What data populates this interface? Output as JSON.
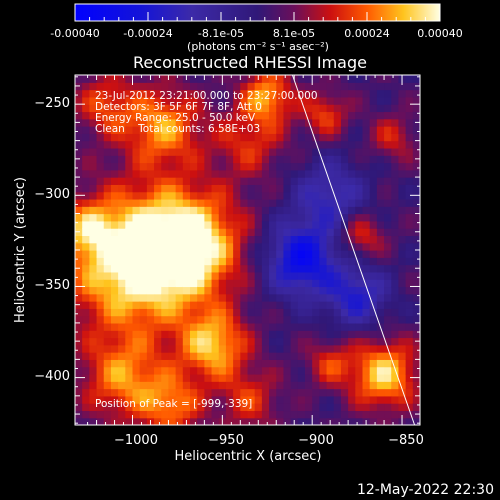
{
  "colorbar": {
    "ticks": [
      "-0.00040",
      "-0.00024",
      "-8.1e-05",
      "8.1e-05",
      "0.00024",
      "0.00040"
    ],
    "units": "(photons cm⁻² s⁻¹ asec⁻²)",
    "range": [
      -0.0004,
      0.0004
    ]
  },
  "chart_data": {
    "type": "heatmap",
    "title": "Reconstructed RHESSI Image",
    "xlabel": "Heliocentric X (arcsec)",
    "ylabel": "Heliocentric Y (arcsec)",
    "xlim": [
      -1032,
      -840
    ],
    "ylim": [
      -426,
      -234
    ],
    "x_ticks": [
      -1000,
      -950,
      -900,
      -850
    ],
    "x_tick_labels": [
      "−1000",
      "−950",
      "−900",
      "−850"
    ],
    "y_ticks": [
      -250,
      -300,
      -350,
      -400
    ],
    "y_tick_labels": [
      "−250",
      "−300",
      "−350",
      "−400"
    ],
    "info_lines": [
      "23-Jul-2012 23:21:00.000 to 23:27:00.000",
      "Detectors: 3F 5F 6F 7F 8F, Att 0",
      "Energy Range: 25.0 - 50.0 keV",
      "Clean    Total counts: 6.58E+03"
    ],
    "peak_label": "Position of Peak = [-999,-339]",
    "peak": [
      -999,
      -339
    ],
    "limb_line": {
      "from": [
        -911,
        -234
      ],
      "to": [
        -843,
        -426
      ]
    },
    "sources": [
      {
        "x": -1000,
        "y": -336,
        "flux": 0.0004,
        "sigma": 26
      },
      {
        "x": -968,
        "y": -326,
        "flux": 0.00034,
        "sigma": 20
      },
      {
        "x": -983,
        "y": -262,
        "flux": 0.00026,
        "sigma": 15
      },
      {
        "x": -935,
        "y": -270,
        "flux": 0.00016,
        "sigma": 14
      },
      {
        "x": -925,
        "y": -245,
        "flux": 0.00026,
        "sigma": 10
      },
      {
        "x": -1015,
        "y": -250,
        "flux": 0.00018,
        "sigma": 12
      },
      {
        "x": -955,
        "y": -382,
        "flux": 0.0003,
        "sigma": 13
      },
      {
        "x": -1005,
        "y": -400,
        "flux": 0.00024,
        "sigma": 16
      },
      {
        "x": -978,
        "y": -415,
        "flux": 0.00022,
        "sigma": 12
      },
      {
        "x": -935,
        "y": -412,
        "flux": 0.00016,
        "sigma": 12
      },
      {
        "x": -860,
        "y": -398,
        "flux": 0.00032,
        "sigma": 13
      },
      {
        "x": -873,
        "y": -322,
        "flux": 0.00018,
        "sigma": 9
      },
      {
        "x": -890,
        "y": -392,
        "flux": 0.00016,
        "sigma": 9
      },
      {
        "x": -893,
        "y": -255,
        "flux": 0.00018,
        "sigma": 9
      },
      {
        "x": -855,
        "y": -268,
        "flux": 0.00014,
        "sigma": 9
      },
      {
        "x": -1025,
        "y": -318,
        "flux": 0.00016,
        "sigma": 10
      },
      {
        "x": -906,
        "y": -335,
        "flux": -0.00034,
        "sigma": 14
      },
      {
        "x": -890,
        "y": -300,
        "flux": -0.0002,
        "sigma": 14
      },
      {
        "x": -875,
        "y": -355,
        "flux": -0.00024,
        "sigma": 12
      }
    ]
  },
  "footer": {
    "timestamp": "12-May-2022 22:30"
  }
}
